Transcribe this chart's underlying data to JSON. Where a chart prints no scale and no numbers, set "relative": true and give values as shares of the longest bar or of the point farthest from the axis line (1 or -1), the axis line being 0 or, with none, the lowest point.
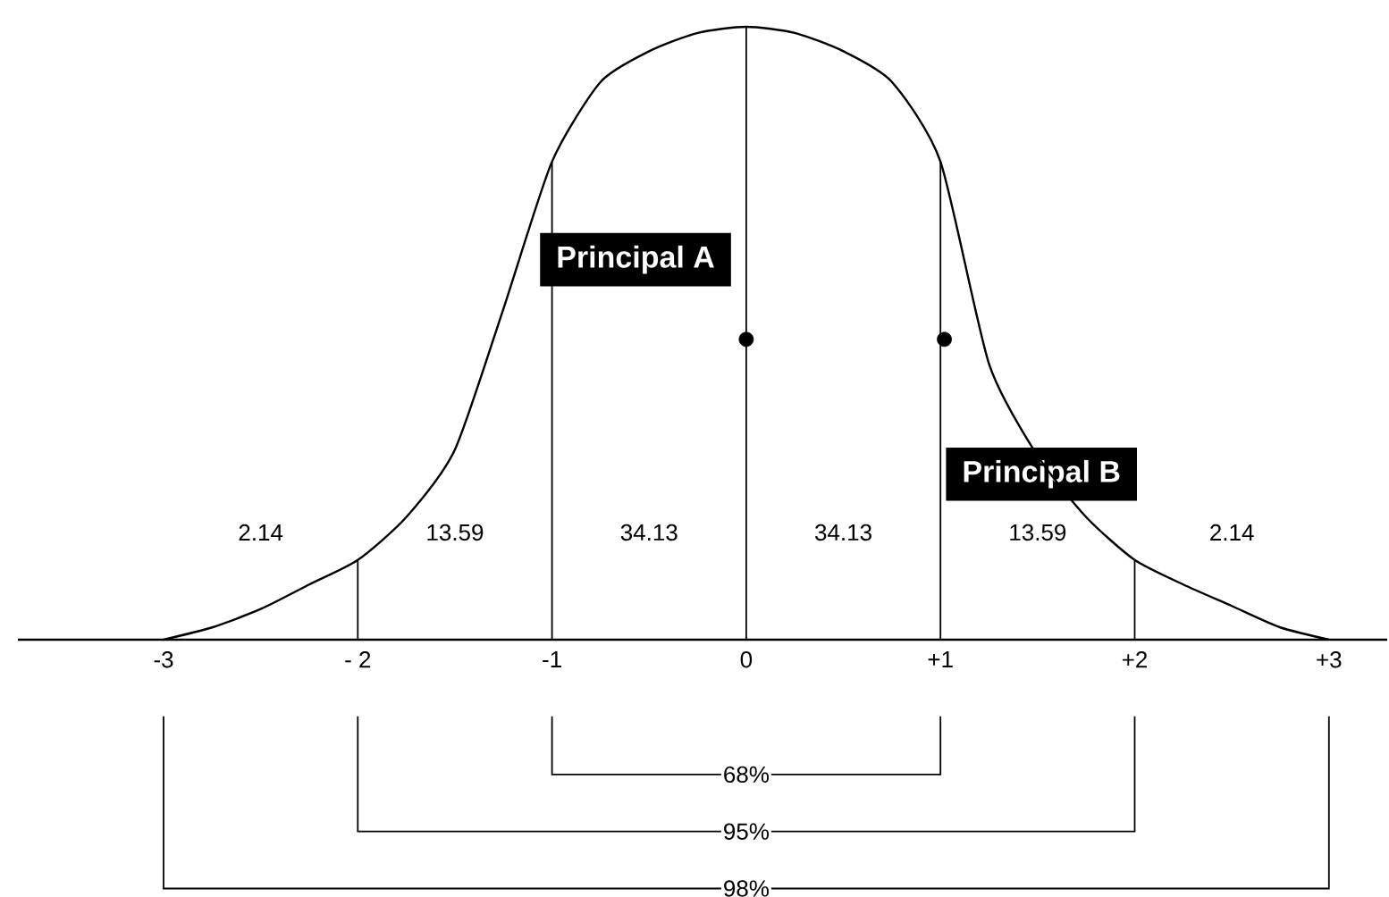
{
  "chart_data": {
    "type": "line",
    "relative": true,
    "grid": false,
    "xlim": [
      -3.75,
      3.3
    ],
    "xticks": [
      -3,
      {
        "value": -2,
        "label": "- 2"
      },
      -1,
      0,
      {
        "value": 1,
        "label": "+1"
      },
      {
        "value": 2,
        "label": "+2"
      },
      {
        "value": 3,
        "label": "+3"
      }
    ],
    "series": [
      {
        "color": "#000000",
        "x": [
          -3,
          -2.75,
          -2.5,
          -2.25,
          -2,
          -1.75,
          -1.5,
          -1.25,
          -1,
          -0.75,
          -0.5,
          -0.25,
          0,
          0.25,
          0.5,
          0.75,
          1,
          1.25,
          1.5,
          1.75,
          2,
          2.25,
          2.5,
          2.75,
          3
        ],
        "values": [
          0,
          0.02,
          0.05,
          0.09,
          0.13,
          0.2,
          0.31,
          0.54,
          0.78,
          0.91,
          0.96,
          0.99,
          1,
          0.99,
          0.96,
          0.91,
          0.78,
          0.45,
          0.3,
          0.2,
          0.13,
          0.09,
          0.055,
          0.02,
          0
        ]
      },
      {
        "type": "scatter",
        "name": "Principal A",
        "color": "#000000",
        "marker": "circle",
        "x": [
          0
        ],
        "values": [
          0.49
        ]
      },
      {
        "type": "scatter",
        "name": "Principal B",
        "color": "#000000",
        "marker": "circle",
        "x": [
          1.02
        ],
        "values": [
          0.49
        ]
      }
    ],
    "ref_lines": [
      {
        "axis": "x",
        "value": -2
      },
      {
        "axis": "x",
        "value": -1
      },
      {
        "axis": "x",
        "value": 0
      },
      {
        "axis": "x",
        "value": 1
      },
      {
        "axis": "x",
        "value": 2
      }
    ],
    "annotations": [
      "2.14",
      "13.59",
      "34.13",
      "34.13",
      "13.59",
      "2.14",
      "68%",
      "95%",
      "98%"
    ]
  }
}
